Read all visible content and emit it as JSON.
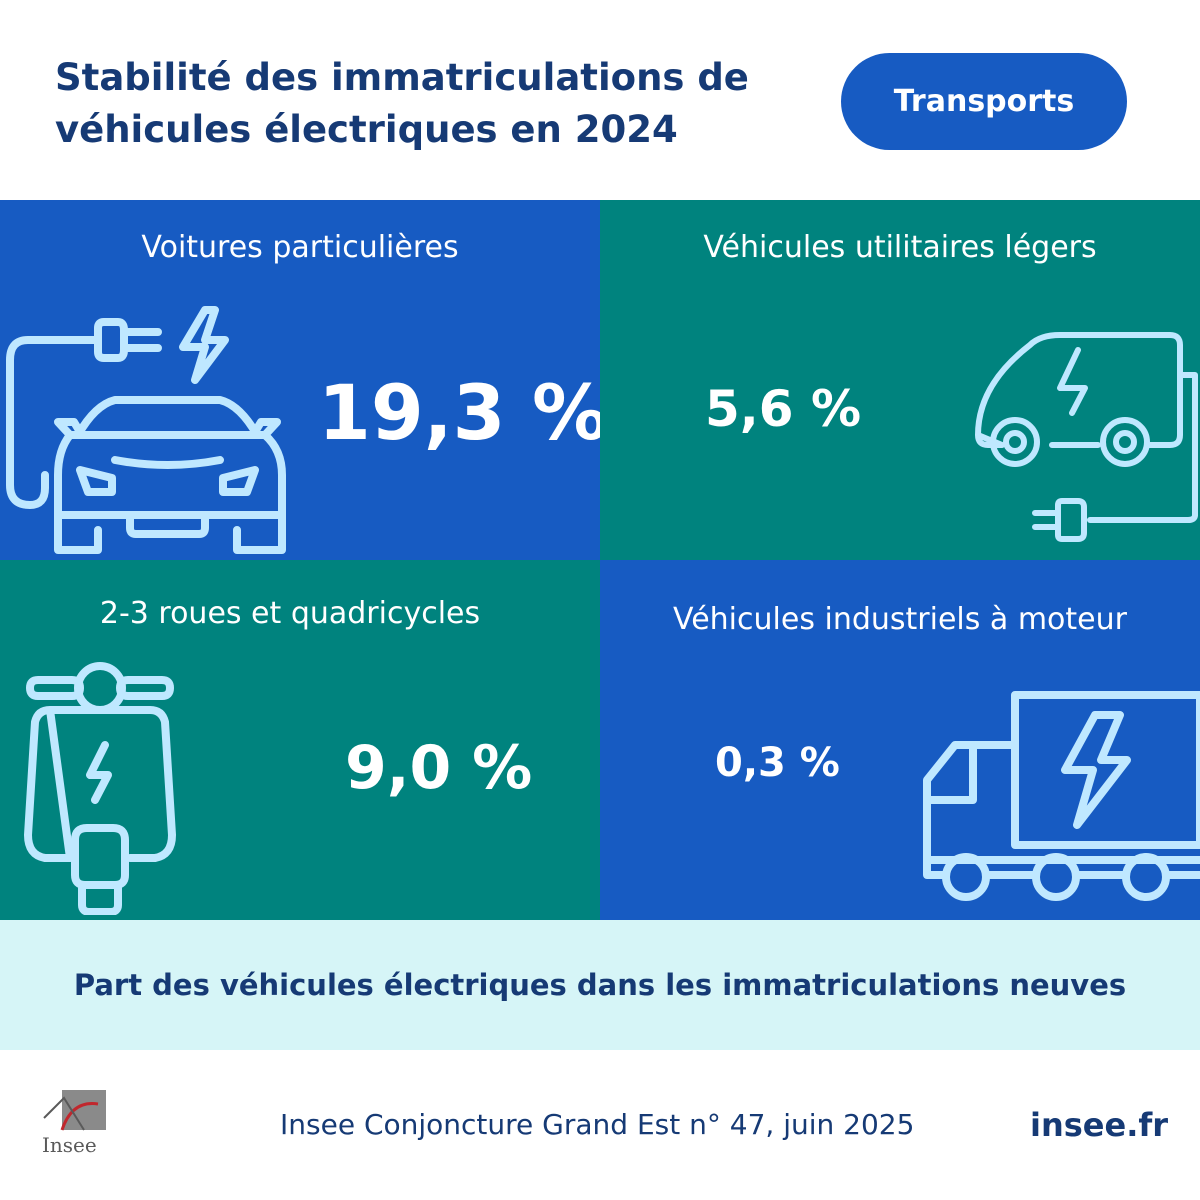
{
  "header": {
    "title": "Stabilité des immatriculations de\nvéhicules électriques en 2024",
    "tag": "Transports"
  },
  "panels": [
    {
      "label": "Voitures particulières",
      "value": "19,3 %",
      "icon": "electric-car-icon"
    },
    {
      "label": "Véhicules utilitaires légers",
      "value": "5,6 %",
      "icon": "electric-van-icon"
    },
    {
      "label": "2-3 roues et quadricycles",
      "value": "9,0 %",
      "icon": "electric-scooter-icon"
    },
    {
      "label": "Véhicules industriels à moteur",
      "value": "0,3 %",
      "icon": "electric-truck-icon"
    }
  ],
  "caption": "Part des véhicules électriques dans les immatriculations neuves",
  "footer": {
    "logo_text": "Insee",
    "source": "Insee Conjoncture Grand Est n° 47, juin 2025",
    "site": "insee.fr"
  },
  "colors": {
    "blue": "#175bc2",
    "teal": "#00837e",
    "navy": "#163a75",
    "light_cyan": "#d6f5f7",
    "icon_stroke": "#bfe8ff"
  }
}
